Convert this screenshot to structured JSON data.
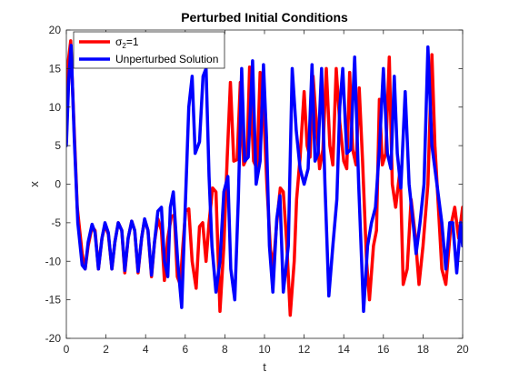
{
  "chart_data": {
    "type": "line",
    "title": "Perturbed Initial Conditions",
    "xlabel": "t",
    "ylabel": "x",
    "xlim": [
      0,
      20
    ],
    "ylim": [
      -20,
      20
    ],
    "xticks": [
      0,
      2,
      4,
      6,
      8,
      10,
      12,
      14,
      16,
      18,
      20
    ],
    "yticks": [
      -20,
      -15,
      -10,
      -5,
      0,
      5,
      10,
      15,
      20
    ],
    "grid": false,
    "legend": {
      "placement": "top-left"
    },
    "series": [
      {
        "name_base": "σ",
        "name_sub": "2",
        "name_rest": "=1",
        "color": "#ff0000",
        "x": [
          0,
          0.1,
          0.22,
          0.38,
          0.55,
          0.8,
          0.95,
          1.1,
          1.3,
          1.45,
          1.62,
          1.8,
          1.95,
          2.12,
          2.3,
          2.45,
          2.62,
          2.8,
          2.95,
          3.12,
          3.3,
          3.45,
          3.62,
          3.8,
          3.95,
          4.12,
          4.3,
          4.45,
          4.62,
          4.8,
          4.95,
          5.12,
          5.3,
          5.45,
          5.6,
          5.75,
          5.88,
          6.02,
          6.18,
          6.35,
          6.55,
          6.72,
          6.88,
          7.05,
          7.2,
          7.38,
          7.55,
          7.75,
          7.95,
          8.12,
          8.28,
          8.45,
          8.62,
          8.78,
          8.95,
          9.12,
          9.25,
          9.45,
          9.62,
          9.78,
          9.95,
          10.12,
          10.3,
          10.45,
          10.62,
          10.8,
          10.95,
          11.12,
          11.3,
          11.5,
          11.62,
          11.8,
          12.0,
          12.15,
          12.3,
          12.45,
          12.62,
          12.78,
          12.95,
          13.12,
          13.3,
          13.45,
          13.62,
          13.8,
          14.0,
          14.15,
          14.3,
          14.45,
          14.62,
          14.78,
          14.95,
          15.15,
          15.3,
          15.5,
          15.65,
          15.8,
          15.95,
          16.12,
          16.3,
          16.45,
          16.62,
          16.85,
          17.0,
          17.2,
          17.4,
          17.6,
          17.8,
          18.0,
          18.25,
          18.45,
          18.6,
          18.8,
          18.95,
          19.15,
          19.4,
          19.6,
          19.8,
          20.0
        ],
        "y": [
          5.5,
          16.0,
          18.6,
          8.0,
          -3.0,
          -9.0,
          -11.0,
          -8.0,
          -5.5,
          -6.0,
          -11.0,
          -7.0,
          -5.3,
          -6.5,
          -11.0,
          -7.5,
          -5.0,
          -6.0,
          -11.5,
          -7.0,
          -4.8,
          -6.0,
          -11.5,
          -7.0,
          -4.6,
          -6.0,
          -12.0,
          -7.5,
          -4.5,
          -6.0,
          -12.5,
          -7.0,
          -4.2,
          -4.0,
          -12.0,
          -13.0,
          -8.0,
          -3.5,
          -3.2,
          -10.0,
          -13.5,
          -5.5,
          -5.0,
          -10.0,
          -5.0,
          -0.5,
          -1.0,
          -16.5,
          -8.0,
          3.5,
          13.2,
          3.0,
          3.2,
          13.2,
          2.5,
          3.5,
          15.2,
          3.0,
          2.0,
          14.5,
          10.0,
          0.0,
          -8.5,
          -10.5,
          -5.0,
          -0.5,
          -1.0,
          -7.5,
          -17.0,
          -10.0,
          -2.0,
          3.5,
          12.0,
          5.0,
          3.5,
          14.0,
          8.0,
          2.0,
          4.5,
          15.0,
          5.0,
          2.5,
          15.0,
          8.0,
          3.0,
          2.0,
          14.5,
          4.5,
          2.5,
          12.5,
          3.0,
          -10.0,
          -15.0,
          -8.0,
          -6.0,
          11.0,
          2.5,
          4.0,
          16.5,
          0.0,
          -3.0,
          2.0,
          -13.0,
          -11.0,
          -2.0,
          -6.5,
          -13.0,
          -8.0,
          0.0,
          16.8,
          5.0,
          -4.0,
          -11.0,
          -13.0,
          -5.5,
          -3.0,
          -7.0,
          -3.0
        ]
      },
      {
        "name": "Unperturbed Solution",
        "color": "#0000ff",
        "x": [
          0,
          0.12,
          0.24,
          0.4,
          0.58,
          0.8,
          0.95,
          1.1,
          1.3,
          1.45,
          1.62,
          1.8,
          1.95,
          2.12,
          2.3,
          2.45,
          2.62,
          2.8,
          2.95,
          3.12,
          3.3,
          3.45,
          3.62,
          3.8,
          3.95,
          4.12,
          4.3,
          4.45,
          4.62,
          4.8,
          4.95,
          5.12,
          5.25,
          5.4,
          5.62,
          5.82,
          6.0,
          6.18,
          6.35,
          6.5,
          6.72,
          6.9,
          7.05,
          7.2,
          7.35,
          7.55,
          7.75,
          7.95,
          8.15,
          8.3,
          8.5,
          8.68,
          8.85,
          9.0,
          9.18,
          9.4,
          9.58,
          9.78,
          9.95,
          10.1,
          10.25,
          10.42,
          10.62,
          10.78,
          10.95,
          11.2,
          11.4,
          11.6,
          11.8,
          12.0,
          12.2,
          12.4,
          12.55,
          12.7,
          12.88,
          13.05,
          13.25,
          13.45,
          13.65,
          13.8,
          13.95,
          14.15,
          14.35,
          14.55,
          14.75,
          15.0,
          15.2,
          15.4,
          15.6,
          15.8,
          16.0,
          16.2,
          16.38,
          16.55,
          16.7,
          16.88,
          17.1,
          17.3,
          17.5,
          17.65,
          17.85,
          18.05,
          18.25,
          18.45,
          18.7,
          18.95,
          19.15,
          19.35,
          19.5,
          19.7,
          19.9,
          20.0
        ],
        "y": [
          5.0,
          13.5,
          18.0,
          6.0,
          -5.0,
          -10.5,
          -11.0,
          -7.5,
          -5.2,
          -6.3,
          -11.0,
          -7.0,
          -5.0,
          -6.3,
          -11.0,
          -7.5,
          -5.0,
          -6.0,
          -11.2,
          -7.0,
          -4.8,
          -6.0,
          -11.3,
          -7.0,
          -4.5,
          -6.0,
          -11.8,
          -7.5,
          -3.5,
          -3.0,
          -10.0,
          -12.0,
          -3.0,
          -1.0,
          -10.0,
          -16.0,
          -3.0,
          10.0,
          14.0,
          4.0,
          5.5,
          14.0,
          15.0,
          1.0,
          -8.0,
          -14.0,
          -10.0,
          -1.0,
          1.0,
          -11.0,
          -15.0,
          -2.0,
          15.0,
          3.0,
          3.5,
          16.0,
          0.0,
          3.0,
          15.5,
          6.0,
          -8.0,
          -14.0,
          -4.5,
          -1.5,
          -14.0,
          -8.0,
          15.0,
          7.0,
          2.0,
          0.0,
          2.0,
          15.5,
          3.0,
          4.0,
          15.0,
          0.0,
          -14.5,
          -8.0,
          -2.0,
          10.0,
          15.0,
          4.0,
          4.5,
          16.5,
          0.0,
          -16.5,
          -8.0,
          -5.0,
          -3.0,
          4.5,
          15.0,
          4.0,
          2.0,
          14.0,
          4.0,
          -0.5,
          12.0,
          0.0,
          -5.0,
          -9.0,
          -5.0,
          0.0,
          17.8,
          5.0,
          0.0,
          -5.0,
          -11.0,
          -5.0,
          -5.0,
          -11.5,
          -5.0,
          -8.0
        ]
      }
    ]
  }
}
